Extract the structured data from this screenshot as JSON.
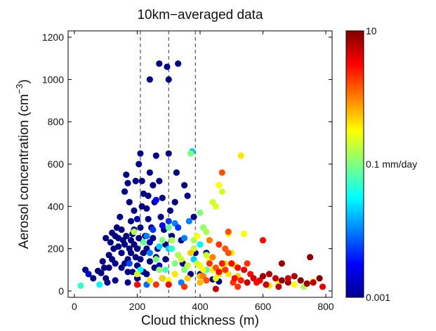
{
  "chart_data": {
    "type": "scatter",
    "title": "10km−averaged data",
    "xlabel": "Cloud thickness (m)",
    "ylabel": "Aerosol concentration (cm",
    "ylabel_sup": "−3",
    "ylabel_close": ")",
    "xlim": [
      -20,
      820
    ],
    "ylim": [
      -30,
      1230
    ],
    "xticks": [
      0,
      200,
      400,
      600,
      800
    ],
    "yticks": [
      0,
      200,
      400,
      600,
      800,
      1000,
      1200
    ],
    "grid": false,
    "vlines": [
      210,
      300,
      385
    ],
    "colorbar": {
      "scale": "log",
      "range": [
        0.001,
        10
      ],
      "colormap": "jet",
      "labels": [
        {
          "value": 10,
          "text": "10"
        },
        {
          "value": 0.1,
          "text": "0.1 mm/day"
        },
        {
          "value": 0.001,
          "text": "0.001"
        }
      ]
    },
    "points": [
      [
        60,
        60,
        0.001
      ],
      [
        75,
        95,
        0.001
      ],
      [
        85,
        85,
        0.001
      ],
      [
        95,
        110,
        0.001
      ],
      [
        100,
        60,
        0.001
      ],
      [
        105,
        40,
        0.001
      ],
      [
        110,
        170,
        0.001
      ],
      [
        115,
        230,
        0.001
      ],
      [
        120,
        275,
        0.001
      ],
      [
        125,
        200,
        0.001
      ],
      [
        130,
        130,
        0.001
      ],
      [
        135,
        300,
        0.001
      ],
      [
        140,
        250,
        0.001
      ],
      [
        145,
        350,
        0.001
      ],
      [
        150,
        180,
        0.001
      ],
      [
        155,
        240,
        0.001
      ],
      [
        160,
        220,
        0.001
      ],
      [
        160,
        470,
        0.001
      ],
      [
        165,
        550,
        0.001
      ],
      [
        165,
        260,
        0.001
      ],
      [
        170,
        510,
        0.001
      ],
      [
        170,
        150,
        0.001
      ],
      [
        175,
        200,
        0.001
      ],
      [
        175,
        420,
        0.001
      ],
      [
        180,
        180,
        0.001
      ],
      [
        180,
        330,
        0.001
      ],
      [
        185,
        90,
        0.001
      ],
      [
        185,
        270,
        0.001
      ],
      [
        190,
        220,
        0.001
      ],
      [
        190,
        380,
        0.001
      ],
      [
        195,
        160,
        0.001
      ],
      [
        195,
        520,
        0.001
      ],
      [
        200,
        200,
        0.001
      ],
      [
        200,
        120,
        0.001
      ],
      [
        205,
        250,
        0.001
      ],
      [
        205,
        600,
        0.001
      ],
      [
        210,
        650,
        0.001
      ],
      [
        210,
        300,
        0.001
      ],
      [
        210,
        150,
        0.001
      ],
      [
        215,
        520,
        0.001
      ],
      [
        215,
        400,
        0.001
      ],
      [
        220,
        180,
        0.001
      ],
      [
        220,
        460,
        0.001
      ],
      [
        225,
        260,
        0.001
      ],
      [
        230,
        200,
        0.001
      ],
      [
        230,
        80,
        0.001
      ],
      [
        235,
        450,
        0.001
      ],
      [
        235,
        340,
        0.001
      ],
      [
        240,
        560,
        0.001
      ],
      [
        240,
        140,
        0.001
      ],
      [
        240,
        1000,
        0.001
      ],
      [
        245,
        300,
        0.001
      ],
      [
        250,
        250,
        0.001
      ],
      [
        250,
        500,
        0.001
      ],
      [
        255,
        420,
        0.001
      ],
      [
        255,
        110,
        0.001
      ],
      [
        260,
        160,
        0.001
      ],
      [
        260,
        640,
        0.001
      ],
      [
        265,
        200,
        0.001
      ],
      [
        270,
        1075,
        0.001
      ],
      [
        270,
        520,
        0.001
      ],
      [
        275,
        350,
        0.001
      ],
      [
        280,
        440,
        0.001
      ],
      [
        280,
        60,
        0.001
      ],
      [
        285,
        290,
        0.001
      ],
      [
        290,
        220,
        0.001
      ],
      [
        290,
        150,
        0.001
      ],
      [
        295,
        1060,
        0.001
      ],
      [
        300,
        1000,
        0.001
      ],
      [
        300,
        650,
        0.001
      ],
      [
        305,
        380,
        0.001
      ],
      [
        310,
        260,
        0.001
      ],
      [
        320,
        420,
        0.001
      ],
      [
        325,
        560,
        0.001
      ],
      [
        330,
        1075,
        0.001
      ],
      [
        340,
        240,
        0.001
      ],
      [
        345,
        130,
        0.001
      ],
      [
        350,
        500,
        0.001
      ],
      [
        360,
        450,
        0.001
      ],
      [
        370,
        80,
        0.001
      ],
      [
        380,
        350,
        0.001
      ],
      [
        385,
        180,
        0.001
      ],
      [
        400,
        80,
        0.001
      ],
      [
        420,
        180,
        0.001
      ],
      [
        440,
        55,
        0.001
      ],
      [
        460,
        45,
        0.001
      ],
      [
        100,
        250,
        0.001
      ],
      [
        130,
        260,
        0.001
      ],
      [
        150,
        110,
        0.001
      ],
      [
        170,
        90,
        0.001
      ],
      [
        190,
        290,
        0.001
      ],
      [
        200,
        60,
        0.001
      ],
      [
        140,
        210,
        0.001
      ],
      [
        120,
        150,
        0.001
      ],
      [
        180,
        240,
        0.001
      ],
      [
        150,
        290,
        0.001
      ],
      [
        160,
        130,
        0.001
      ],
      [
        220,
        90,
        0.001
      ],
      [
        90,
        140,
        0.001
      ],
      [
        110,
        110,
        0.001
      ],
      [
        130,
        50,
        0.001
      ],
      [
        170,
        40,
        0.001
      ],
      [
        240,
        230,
        0.0015
      ],
      [
        230,
        390,
        0.001
      ],
      [
        200,
        340,
        0.0015
      ],
      [
        270,
        120,
        0.0015
      ],
      [
        35,
        100,
        0.001
      ],
      [
        45,
        80,
        0.002
      ],
      [
        20,
        25,
        0.05
      ],
      [
        80,
        30,
        0.03
      ],
      [
        230,
        260,
        0.01
      ],
      [
        260,
        430,
        0.003
      ],
      [
        280,
        310,
        0.003
      ],
      [
        320,
        320,
        0.01
      ],
      [
        300,
        330,
        0.005
      ],
      [
        330,
        300,
        0.005
      ],
      [
        350,
        250,
        0.01
      ],
      [
        365,
        330,
        0.01
      ],
      [
        375,
        660,
        0.02
      ],
      [
        210,
        100,
        0.03
      ],
      [
        240,
        180,
        0.01
      ],
      [
        250,
        290,
        0.005
      ],
      [
        270,
        210,
        0.02
      ],
      [
        300,
        200,
        0.02
      ],
      [
        310,
        200,
        0.05
      ],
      [
        290,
        100,
        0.06
      ],
      [
        380,
        150,
        0.02
      ],
      [
        400,
        220,
        0.03
      ],
      [
        420,
        100,
        0.06
      ],
      [
        175,
        130,
        0.006
      ],
      [
        230,
        30,
        0.008
      ],
      [
        340,
        40,
        0.01
      ],
      [
        190,
        280,
        0.15
      ],
      [
        200,
        80,
        0.2
      ],
      [
        220,
        230,
        0.08
      ],
      [
        260,
        150,
        0.1
      ],
      [
        270,
        100,
        0.12
      ],
      [
        280,
        240,
        0.1
      ],
      [
        300,
        300,
        0.08
      ],
      [
        310,
        240,
        0.15
      ],
      [
        320,
        130,
        0.1
      ],
      [
        330,
        170,
        0.15
      ],
      [
        340,
        150,
        0.2
      ],
      [
        350,
        100,
        0.1
      ],
      [
        360,
        120,
        0.18
      ],
      [
        370,
        650,
        0.1
      ],
      [
        380,
        200,
        0.2
      ],
      [
        380,
        240,
        0.15
      ],
      [
        390,
        260,
        0.3
      ],
      [
        390,
        130,
        0.2
      ],
      [
        400,
        120,
        0.25
      ],
      [
        410,
        100,
        0.3
      ],
      [
        420,
        170,
        0.2
      ],
      [
        430,
        150,
        0.3
      ],
      [
        440,
        100,
        0.3
      ],
      [
        450,
        60,
        0.25
      ],
      [
        460,
        80,
        0.4
      ],
      [
        470,
        100,
        0.3
      ],
      [
        480,
        130,
        0.4
      ],
      [
        490,
        80,
        0.4
      ],
      [
        400,
        370,
        0.1
      ],
      [
        410,
        300,
        0.12
      ],
      [
        420,
        280,
        0.15
      ],
      [
        440,
        420,
        0.2
      ],
      [
        450,
        400,
        0.25
      ],
      [
        460,
        500,
        0.3
      ],
      [
        470,
        470,
        0.2
      ],
      [
        490,
        270,
        0.3
      ],
      [
        500,
        180,
        0.4
      ],
      [
        510,
        120,
        0.4
      ],
      [
        520,
        70,
        0.5
      ],
      [
        530,
        640,
        0.4
      ],
      [
        540,
        270,
        0.3
      ],
      [
        300,
        50,
        0.3
      ],
      [
        240,
        50,
        0.4
      ],
      [
        280,
        60,
        0.5
      ],
      [
        320,
        80,
        0.4
      ],
      [
        360,
        60,
        0.5
      ],
      [
        400,
        40,
        0.6
      ],
      [
        580,
        40,
        0.3
      ],
      [
        620,
        25,
        0.4
      ],
      [
        650,
        40,
        0.3
      ],
      [
        700,
        30,
        0.3
      ],
      [
        730,
        20,
        0.15
      ],
      [
        760,
        45,
        0.4
      ],
      [
        400,
        70,
        0.6
      ],
      [
        370,
        180,
        0.5
      ],
      [
        410,
        70,
        1
      ],
      [
        420,
        50,
        1.5
      ],
      [
        430,
        130,
        2
      ],
      [
        440,
        160,
        1
      ],
      [
        450,
        110,
        1.5
      ],
      [
        460,
        90,
        3
      ],
      [
        470,
        130,
        2.5
      ],
      [
        480,
        100,
        2
      ],
      [
        490,
        180,
        1.5
      ],
      [
        500,
        130,
        3
      ],
      [
        505,
        40,
        2
      ],
      [
        510,
        60,
        3
      ],
      [
        520,
        110,
        3
      ],
      [
        530,
        50,
        2.5
      ],
      [
        540,
        100,
        4
      ],
      [
        550,
        130,
        2
      ],
      [
        560,
        80,
        3
      ],
      [
        570,
        60,
        5
      ],
      [
        580,
        40,
        3
      ],
      [
        590,
        50,
        4
      ],
      [
        600,
        240,
        3
      ],
      [
        470,
        560,
        1.5
      ],
      [
        480,
        200,
        1.5
      ],
      [
        490,
        280,
        1.5
      ],
      [
        460,
        220,
        2
      ],
      [
        430,
        240,
        1
      ],
      [
        200,
        30,
        3
      ],
      [
        260,
        30,
        2
      ],
      [
        300,
        30,
        3
      ],
      [
        350,
        20,
        2
      ],
      [
        520,
        20,
        2
      ],
      [
        600,
        70,
        8
      ],
      [
        620,
        80,
        7
      ],
      [
        640,
        60,
        6
      ],
      [
        660,
        50,
        9
      ],
      [
        680,
        40,
        8
      ],
      [
        700,
        70,
        7
      ],
      [
        720,
        50,
        10
      ],
      [
        740,
        35,
        8
      ],
      [
        750,
        160,
        9
      ],
      [
        760,
        40,
        6
      ],
      [
        780,
        60,
        10
      ],
      [
        790,
        20,
        4
      ],
      [
        660,
        130,
        8
      ],
      [
        680,
        60,
        5
      ],
      [
        550,
        40,
        6
      ],
      [
        450,
        10,
        6
      ],
      [
        610,
        30,
        5
      ],
      [
        650,
        20,
        6
      ]
    ]
  }
}
